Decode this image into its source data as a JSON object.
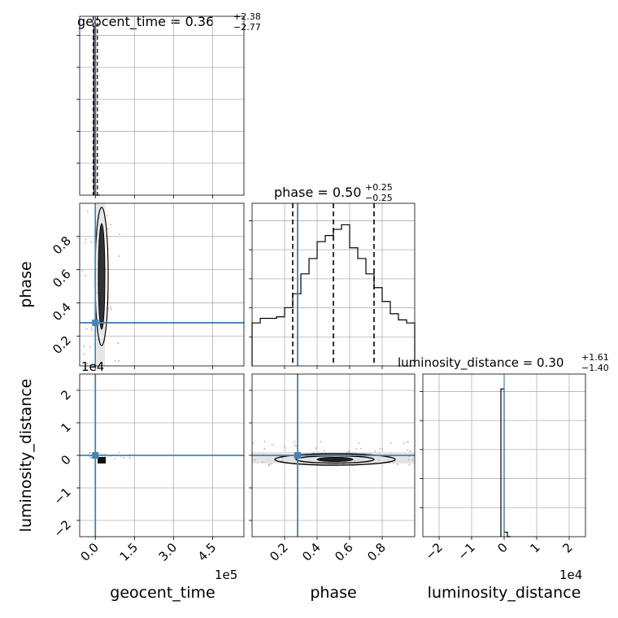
{
  "chart_data": {
    "type": "corner",
    "parameters": [
      "geocent_time",
      "phase",
      "luminosity_distance"
    ],
    "axis_labels": {
      "geocent_time": "geocent_time",
      "phase": "phase",
      "luminosity_distance": "luminosity_distance"
    },
    "scale_labels": {
      "geocent_time_x": "1e5",
      "luminosity_distance_y": "1e4",
      "luminosity_distance_x": "1e4"
    },
    "titles": {
      "geocent_time": {
        "prefix": "geocent_time = 0.36",
        "plus": "+2.38",
        "minus": "−2.77"
      },
      "phase": {
        "prefix": "phase = 0.50",
        "plus": "+0.25",
        "minus": "−0.25"
      },
      "luminosity_distance": {
        "prefix": "luminosity_distance = 0.30",
        "plus": "+1.61",
        "minus": "−1.40"
      }
    },
    "ranges": {
      "geocent_time": [
        -60000,
        570000
      ],
      "phase": [
        0.0,
        1.0
      ],
      "phase_y": [
        0.02,
        1.0
      ],
      "luminosity_distance": [
        -25000,
        25000
      ]
    },
    "ticks": {
      "geocent_time": {
        "values": [
          0,
          150000,
          300000,
          450000
        ],
        "labels": [
          "0.0",
          "1.5",
          "3.0",
          "4.5"
        ]
      },
      "phase": {
        "values": [
          0.2,
          0.4,
          0.6,
          0.8
        ],
        "labels": [
          "0.2",
          "0.4",
          "0.6",
          "0.8"
        ]
      },
      "luminosity_distance": {
        "values": [
          -20000,
          -10000,
          0,
          10000,
          20000
        ],
        "labels": [
          "−2",
          "−1",
          "0",
          "1",
          "2"
        ]
      }
    },
    "truths": {
      "geocent_time": 0,
      "phase": 0.28,
      "luminosity_distance": 0
    },
    "quantiles": {
      "geocent_time": [
        -8000,
        0,
        8000
      ],
      "phase": [
        0.25,
        0.5,
        0.75
      ]
    },
    "histograms": {
      "geocent_time": {
        "edges": [
          -5000,
          1000,
          17000
        ],
        "counts": [
          1.0,
          0.0
        ]
      },
      "phase": {
        "edges": [
          0.0,
          0.05,
          0.1,
          0.15,
          0.2,
          0.25,
          0.3,
          0.35,
          0.4,
          0.45,
          0.5,
          0.55,
          0.6,
          0.65,
          0.7,
          0.75,
          0.8,
          0.85,
          0.9,
          0.95,
          1.0
        ],
        "counts": [
          0.28,
          0.31,
          0.31,
          0.32,
          0.38,
          0.47,
          0.6,
          0.7,
          0.81,
          0.85,
          0.89,
          0.92,
          0.77,
          0.7,
          0.6,
          0.51,
          0.42,
          0.34,
          0.3,
          0.28
        ]
      },
      "luminosity_distance": {
        "edges": [
          -1000,
          0,
          1000,
          2000
        ],
        "counts": [
          0.99,
          0.03,
          0.0
        ]
      }
    }
  }
}
